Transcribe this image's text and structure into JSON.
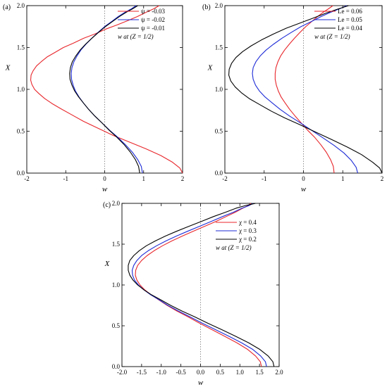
{
  "chart_data": [
    {
      "type": "line",
      "panel_label": "(a)",
      "xlabel": "w",
      "ylabel": "X",
      "xlim": [
        -2,
        2
      ],
      "ylim": [
        0,
        2
      ],
      "xticks": [
        -2,
        -1,
        0,
        1,
        2
      ],
      "yticks": [
        0.0,
        0.5,
        1.0,
        1.5,
        2.0
      ],
      "legend_note": "w at (Z = 1/2)",
      "legend_position": "top-right",
      "series": [
        {
          "name": "ψ = -0.03",
          "color": "#e8262b",
          "x": [
            2.0,
            1.93,
            1.74,
            1.44,
            1.06,
            0.64,
            0.22,
            -0.19,
            -0.55,
            -0.86,
            -1.13,
            -1.35,
            -1.54,
            -1.69,
            -1.8,
            -1.87,
            -1.9,
            -1.89,
            -1.84,
            -1.75,
            -1.63,
            -1.47,
            -1.28,
            -1.06,
            -0.81,
            -0.54,
            -0.26,
            0.03,
            0.32,
            0.59,
            0.84,
            1.06,
            1.25,
            1.4
          ],
          "y": [
            0.0,
            0.06,
            0.13,
            0.21,
            0.29,
            0.37,
            0.45,
            0.54,
            0.62,
            0.7,
            0.77,
            0.83,
            0.89,
            0.95,
            1.0,
            1.06,
            1.11,
            1.17,
            1.22,
            1.28,
            1.33,
            1.39,
            1.44,
            1.5,
            1.55,
            1.61,
            1.66,
            1.72,
            1.77,
            1.82,
            1.87,
            1.92,
            1.96,
            2.0
          ]
        },
        {
          "name": "ψ = -0.02",
          "color": "#1d2bd6",
          "x": [
            0.97,
            0.94,
            0.85,
            0.71,
            0.53,
            0.33,
            0.13,
            -0.07,
            -0.25,
            -0.41,
            -0.55,
            -0.66,
            -0.75,
            -0.81,
            -0.85,
            -0.86,
            -0.84,
            -0.79,
            -0.71,
            -0.61,
            -0.48,
            -0.33,
            -0.17,
            0.0,
            0.18,
            0.35,
            0.52,
            0.68,
            0.81
          ],
          "y": [
            0.0,
            0.08,
            0.16,
            0.25,
            0.34,
            0.43,
            0.51,
            0.6,
            0.68,
            0.76,
            0.84,
            0.91,
            0.98,
            1.05,
            1.12,
            1.19,
            1.26,
            1.33,
            1.4,
            1.47,
            1.54,
            1.61,
            1.68,
            1.75,
            1.81,
            1.87,
            1.92,
            1.96,
            2.0
          ]
        },
        {
          "name": "ψ = -0.01",
          "color": "#000000",
          "x": [
            0.9,
            0.87,
            0.79,
            0.66,
            0.5,
            0.31,
            0.12,
            -0.07,
            -0.25,
            -0.41,
            -0.55,
            -0.67,
            -0.77,
            -0.84,
            -0.89,
            -0.9,
            -0.88,
            -0.83,
            -0.74,
            -0.63,
            -0.49,
            -0.33,
            -0.16,
            0.02,
            0.2,
            0.38,
            0.55,
            0.71,
            0.85
          ],
          "y": [
            0.0,
            0.08,
            0.16,
            0.25,
            0.34,
            0.43,
            0.51,
            0.6,
            0.68,
            0.76,
            0.84,
            0.91,
            0.98,
            1.05,
            1.12,
            1.19,
            1.26,
            1.33,
            1.4,
            1.47,
            1.54,
            1.61,
            1.68,
            1.75,
            1.81,
            1.87,
            1.92,
            1.96,
            2.0
          ]
        }
      ]
    },
    {
      "type": "line",
      "panel_label": "(b)",
      "xlabel": "w",
      "ylabel": "X",
      "xlim": [
        -2,
        2
      ],
      "ylim": [
        0,
        2
      ],
      "xticks": [
        -2,
        -1,
        0,
        1,
        2
      ],
      "yticks": [
        0.0,
        0.5,
        1.0,
        1.5,
        2.0
      ],
      "legend_note": "w at (Z = 1/2)",
      "legend_position": "top-right",
      "series": [
        {
          "name": "Le = 0.06",
          "color": "#e8262b",
          "x": [
            0.78,
            0.76,
            0.69,
            0.58,
            0.44,
            0.28,
            0.11,
            -0.06,
            -0.21,
            -0.35,
            -0.47,
            -0.57,
            -0.64,
            -0.69,
            -0.72,
            -0.72,
            -0.7,
            -0.65,
            -0.58,
            -0.48,
            -0.36,
            -0.23,
            -0.09,
            0.06,
            0.21,
            0.36,
            0.5,
            0.63,
            0.75
          ],
          "y": [
            0.0,
            0.08,
            0.16,
            0.25,
            0.34,
            0.43,
            0.51,
            0.6,
            0.68,
            0.76,
            0.84,
            0.91,
            0.98,
            1.05,
            1.12,
            1.19,
            1.26,
            1.33,
            1.4,
            1.47,
            1.54,
            1.61,
            1.68,
            1.75,
            1.81,
            1.87,
            1.92,
            1.96,
            2.0
          ]
        },
        {
          "name": "Le = 0.05",
          "color": "#1d2bd6",
          "x": [
            1.38,
            1.34,
            1.22,
            1.03,
            0.78,
            0.5,
            0.21,
            -0.08,
            -0.35,
            -0.59,
            -0.8,
            -0.98,
            -1.12,
            -1.22,
            -1.28,
            -1.3,
            -1.28,
            -1.21,
            -1.1,
            -0.95,
            -0.76,
            -0.55,
            -0.31,
            -0.06,
            0.2,
            0.45,
            0.69,
            0.91,
            1.1
          ],
          "y": [
            0.0,
            0.07,
            0.15,
            0.24,
            0.33,
            0.42,
            0.51,
            0.6,
            0.68,
            0.76,
            0.84,
            0.91,
            0.98,
            1.05,
            1.12,
            1.19,
            1.26,
            1.33,
            1.4,
            1.47,
            1.54,
            1.61,
            1.68,
            1.75,
            1.81,
            1.87,
            1.92,
            1.96,
            2.0
          ]
        },
        {
          "name": "Le = 0.04",
          "color": "#000000",
          "x": [
            2.0,
            1.94,
            1.76,
            1.48,
            1.12,
            0.72,
            0.31,
            -0.1,
            -0.48,
            -0.82,
            -1.12,
            -1.38,
            -1.58,
            -1.74,
            -1.85,
            -1.9,
            -1.89,
            -1.83,
            -1.72,
            -1.55,
            -1.33,
            -1.07,
            -0.77,
            -0.44,
            -0.1,
            0.24,
            0.57,
            0.88,
            1.15
          ],
          "y": [
            0.0,
            0.06,
            0.13,
            0.22,
            0.31,
            0.4,
            0.49,
            0.58,
            0.66,
            0.74,
            0.82,
            0.89,
            0.96,
            1.03,
            1.1,
            1.17,
            1.24,
            1.31,
            1.38,
            1.45,
            1.52,
            1.59,
            1.66,
            1.73,
            1.79,
            1.85,
            1.91,
            1.96,
            2.0
          ]
        }
      ]
    },
    {
      "type": "line",
      "panel_label": "(c)",
      "xlabel": "w",
      "ylabel": "X",
      "xlim": [
        -2.0,
        2.0
      ],
      "ylim": [
        0.0,
        2.0
      ],
      "xticks": [
        -2.0,
        -1.5,
        -1.0,
        -0.5,
        0.0,
        0.5,
        1.0,
        1.5,
        2.0
      ],
      "yticks": [
        0.0,
        0.5,
        1.0,
        1.5,
        2.0
      ],
      "legend_note": "w at (Z = 1/2)",
      "legend_position": "top-right",
      "series": [
        {
          "name": "χ = 0.4",
          "color": "#e8262b",
          "x": [
            1.55,
            1.52,
            1.4,
            1.2,
            0.93,
            0.62,
            0.3,
            -0.02,
            -0.32,
            -0.6,
            -0.85,
            -1.07,
            -1.26,
            -1.42,
            -1.54,
            -1.62,
            -1.66,
            -1.65,
            -1.6,
            -1.5,
            -1.36,
            -1.18,
            -0.97,
            -0.73,
            -0.46,
            -0.18,
            0.11,
            0.4,
            0.66,
            0.88,
            1.07,
            1.2,
            1.28
          ],
          "y": [
            0.0,
            0.06,
            0.13,
            0.21,
            0.29,
            0.37,
            0.45,
            0.53,
            0.61,
            0.68,
            0.75,
            0.82,
            0.88,
            0.94,
            1.0,
            1.06,
            1.12,
            1.18,
            1.24,
            1.3,
            1.36,
            1.42,
            1.48,
            1.54,
            1.6,
            1.66,
            1.72,
            1.78,
            1.84,
            1.89,
            1.94,
            1.97,
            2.0
          ]
        },
        {
          "name": "χ = 0.3",
          "color": "#1d2bd6",
          "x": [
            1.68,
            1.65,
            1.53,
            1.33,
            1.05,
            0.73,
            0.39,
            0.05,
            -0.27,
            -0.56,
            -0.83,
            -1.06,
            -1.27,
            -1.44,
            -1.58,
            -1.68,
            -1.73,
            -1.74,
            -1.7,
            -1.62,
            -1.5,
            -1.33,
            -1.12,
            -0.88,
            -0.61,
            -0.32,
            -0.02,
            0.28,
            0.57,
            0.83,
            1.05,
            1.22,
            1.34
          ],
          "y": [
            0.0,
            0.06,
            0.13,
            0.21,
            0.29,
            0.37,
            0.45,
            0.53,
            0.61,
            0.68,
            0.75,
            0.82,
            0.88,
            0.94,
            1.0,
            1.06,
            1.12,
            1.18,
            1.24,
            1.3,
            1.36,
            1.42,
            1.48,
            1.54,
            1.6,
            1.66,
            1.72,
            1.78,
            1.84,
            1.89,
            1.94,
            1.97,
            2.0
          ]
        },
        {
          "name": "χ = 0.2",
          "color": "#000000",
          "x": [
            1.87,
            1.84,
            1.72,
            1.51,
            1.23,
            0.9,
            0.55,
            0.19,
            -0.15,
            -0.47,
            -0.76,
            -1.02,
            -1.25,
            -1.44,
            -1.6,
            -1.72,
            -1.8,
            -1.84,
            -1.84,
            -1.8,
            -1.7,
            -1.56,
            -1.38,
            -1.15,
            -0.89,
            -0.6,
            -0.29,
            0.03,
            0.34,
            0.63,
            0.9,
            1.12,
            1.3,
            1.4
          ],
          "y": [
            0.0,
            0.06,
            0.13,
            0.21,
            0.29,
            0.37,
            0.45,
            0.53,
            0.61,
            0.68,
            0.75,
            0.82,
            0.88,
            0.94,
            1.0,
            1.06,
            1.12,
            1.18,
            1.24,
            1.3,
            1.36,
            1.42,
            1.48,
            1.54,
            1.6,
            1.66,
            1.72,
            1.78,
            1.84,
            1.89,
            1.94,
            1.97,
            1.99,
            2.0
          ]
        }
      ]
    }
  ]
}
